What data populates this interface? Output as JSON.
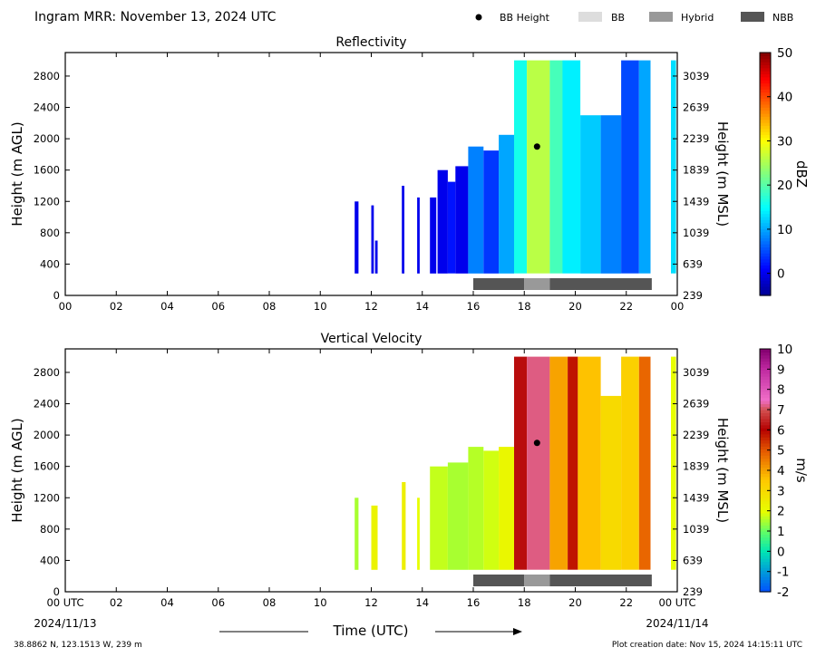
{
  "header": {
    "title": "Ingram MRR:  November 13, 2024 UTC",
    "legend": [
      {
        "label": "BB Height",
        "kind": "dot",
        "color": "#000000"
      },
      {
        "label": "BB",
        "kind": "box",
        "color": "#dddddd"
      },
      {
        "label": "Hybrid",
        "kind": "box",
        "color": "#999999"
      },
      {
        "label": "NBB",
        "kind": "box",
        "color": "#555555"
      }
    ]
  },
  "footer": {
    "location": "38.8862 N, 123.1513 W, 239 m",
    "creation": "Plot creation date: Nov 15, 2024 14:15:11 UTC",
    "xlabel": "Time (UTC)",
    "start_date": "2024/11/13",
    "end_date": "2024/11/14"
  },
  "chart_data": [
    {
      "type": "heatmap",
      "title": "Reflectivity",
      "ylabel": "Height (m AGL)",
      "ylabel2": "Height (m MSL)",
      "xlim": [
        0,
        24
      ],
      "ylim": [
        0,
        3100
      ],
      "xticks": [
        "00",
        "02",
        "04",
        "06",
        "08",
        "10",
        "12",
        "14",
        "16",
        "18",
        "20",
        "22",
        "00"
      ],
      "yticks": [
        0,
        400,
        800,
        1200,
        1600,
        2000,
        2400,
        2800
      ],
      "yticks2": [
        239,
        639,
        1039,
        1439,
        1839,
        2239,
        2639,
        3039
      ],
      "colorbar": {
        "label": "dBZ",
        "min": -5,
        "max": 50,
        "ticks": [
          0,
          10,
          20,
          30,
          40,
          50
        ],
        "colormap": "jet"
      },
      "bb_height": {
        "time": 18.5,
        "height": 1900
      },
      "bb_type_bar": [
        {
          "start": 16.0,
          "end": 18.0,
          "type": "NBB"
        },
        {
          "start": 18.0,
          "end": 19.0,
          "type": "Hybrid"
        },
        {
          "start": 19.0,
          "end": 23.0,
          "type": "NBB"
        }
      ],
      "observations": [
        {
          "start": 11.35,
          "end": 11.5,
          "top": 1200,
          "level": 0
        },
        {
          "start": 12.0,
          "end": 12.1,
          "top": 1150,
          "level": 0
        },
        {
          "start": 12.15,
          "end": 12.25,
          "top": 700,
          "level": 0
        },
        {
          "start": 13.2,
          "end": 13.3,
          "top": 1400,
          "level": 0
        },
        {
          "start": 13.8,
          "end": 13.9,
          "top": 1250,
          "level": 0
        },
        {
          "start": 14.3,
          "end": 14.55,
          "top": 1250,
          "level": 0
        },
        {
          "start": 14.6,
          "end": 15.0,
          "top": 1600,
          "level": 0
        },
        {
          "start": 15.0,
          "end": 15.3,
          "top": 1450,
          "level": 2
        },
        {
          "start": 15.3,
          "end": 15.8,
          "top": 1650,
          "level": 0
        },
        {
          "start": 15.8,
          "end": 16.4,
          "top": 1900,
          "level": 8
        },
        {
          "start": 16.4,
          "end": 17.0,
          "top": 1850,
          "level": 4
        },
        {
          "start": 17.0,
          "end": 17.6,
          "top": 2050,
          "level": 10
        },
        {
          "start": 17.6,
          "end": 18.1,
          "top": 3000,
          "level": 16
        },
        {
          "start": 18.1,
          "end": 19.0,
          "top": 3000,
          "level": 26
        },
        {
          "start": 19.0,
          "end": 19.5,
          "top": 3000,
          "level": 19
        },
        {
          "start": 19.5,
          "end": 20.2,
          "top": 3000,
          "level": 14
        },
        {
          "start": 20.2,
          "end": 21.0,
          "top": 2300,
          "level": 12
        },
        {
          "start": 21.0,
          "end": 21.8,
          "top": 2300,
          "level": 8
        },
        {
          "start": 21.8,
          "end": 22.5,
          "top": 3000,
          "level": 5
        },
        {
          "start": 22.5,
          "end": 22.95,
          "top": 3000,
          "level": 10
        },
        {
          "start": 23.75,
          "end": 23.95,
          "top": 3000,
          "level": 13
        }
      ]
    },
    {
      "type": "heatmap",
      "title": "Vertical Velocity",
      "ylabel": "Height (m AGL)",
      "ylabel2": "Height (m MSL)",
      "xlim": [
        0,
        24
      ],
      "ylim": [
        0,
        3100
      ],
      "xticks": [
        "00 UTC",
        "02",
        "04",
        "06",
        "08",
        "10",
        "12",
        "14",
        "16",
        "18",
        "20",
        "22",
        "00 UTC"
      ],
      "yticks": [
        0,
        400,
        800,
        1200,
        1600,
        2000,
        2400,
        2800
      ],
      "yticks2": [
        239,
        639,
        1039,
        1439,
        1839,
        2239,
        2639,
        3039
      ],
      "colorbar": {
        "label": "m/s",
        "min": -2,
        "max": 10,
        "ticks": [
          -2,
          -1,
          0,
          1,
          2,
          3,
          4,
          5,
          6,
          7,
          8,
          9,
          10
        ],
        "colormap": "velocity"
      },
      "bb_height": {
        "time": 18.5,
        "height": 1900
      },
      "bb_type_bar": [
        {
          "start": 16.0,
          "end": 18.0,
          "type": "NBB"
        },
        {
          "start": 18.0,
          "end": 19.0,
          "type": "Hybrid"
        },
        {
          "start": 19.0,
          "end": 23.0,
          "type": "NBB"
        }
      ],
      "observations": [
        {
          "start": 11.35,
          "end": 11.5,
          "top": 1200,
          "level": 1.5
        },
        {
          "start": 12.0,
          "end": 12.25,
          "top": 1100,
          "level": 2.3
        },
        {
          "start": 13.2,
          "end": 13.35,
          "top": 1400,
          "level": 2.4
        },
        {
          "start": 13.8,
          "end": 13.9,
          "top": 1200,
          "level": 2.0
        },
        {
          "start": 14.3,
          "end": 15.0,
          "top": 1600,
          "level": 1.7
        },
        {
          "start": 15.0,
          "end": 15.8,
          "top": 1650,
          "level": 1.5
        },
        {
          "start": 15.8,
          "end": 16.4,
          "top": 1850,
          "level": 1.6
        },
        {
          "start": 16.4,
          "end": 17.0,
          "top": 1800,
          "level": 1.8
        },
        {
          "start": 17.0,
          "end": 17.6,
          "top": 1850,
          "level": 2.2
        },
        {
          "start": 17.6,
          "end": 18.1,
          "top": 3000,
          "level": 6.2
        },
        {
          "start": 18.1,
          "end": 19.0,
          "top": 3000,
          "level": 7.2
        },
        {
          "start": 19.0,
          "end": 19.7,
          "top": 3000,
          "level": 4.0
        },
        {
          "start": 19.7,
          "end": 20.1,
          "top": 3000,
          "level": 5.8
        },
        {
          "start": 20.1,
          "end": 21.0,
          "top": 3000,
          "level": 3.6
        },
        {
          "start": 21.0,
          "end": 21.8,
          "top": 2500,
          "level": 3.0
        },
        {
          "start": 21.8,
          "end": 22.5,
          "top": 3000,
          "level": 3.3
        },
        {
          "start": 22.5,
          "end": 22.95,
          "top": 3000,
          "level": 4.8
        },
        {
          "start": 23.75,
          "end": 23.95,
          "top": 3000,
          "level": 2.0
        }
      ]
    }
  ]
}
